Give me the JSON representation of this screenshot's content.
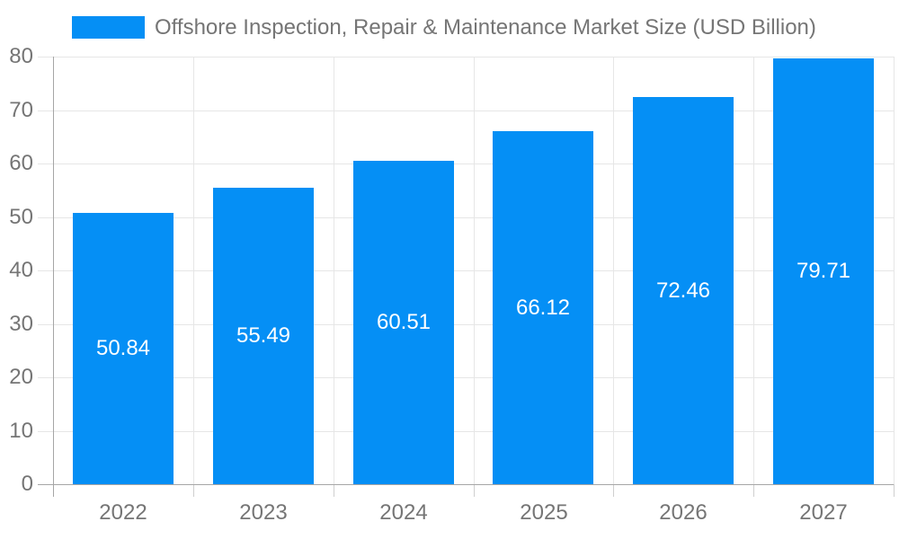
{
  "chart_data": {
    "type": "bar",
    "title": "Offshore Inspection, Repair & Maintenance Market Size (USD Billion)",
    "categories": [
      "2022",
      "2023",
      "2024",
      "2025",
      "2026",
      "2027"
    ],
    "values": [
      50.84,
      55.49,
      60.51,
      66.12,
      72.46,
      79.71
    ],
    "value_labels": [
      "50.84",
      "55.49",
      "60.51",
      "66.12",
      "72.46",
      "79.71"
    ],
    "xlabel": "",
    "ylabel": "",
    "ylim": [
      0,
      80
    ],
    "yticks": [
      0,
      10,
      20,
      30,
      40,
      50,
      60,
      70,
      80
    ],
    "ytick_labels": [
      "0",
      "10",
      "20",
      "30",
      "40",
      "50",
      "60",
      "70",
      "80"
    ],
    "grid": "on",
    "legend_position": "top",
    "colors": {
      "bar": "#058ff5",
      "title_text": "#757575",
      "axis_text": "#757575",
      "value_label": "#ffffff",
      "grid_line": "#e6e6e6",
      "tick_line": "#cfcfcf",
      "axis_line": "#a6a6a6",
      "background": "#ffffff"
    }
  }
}
